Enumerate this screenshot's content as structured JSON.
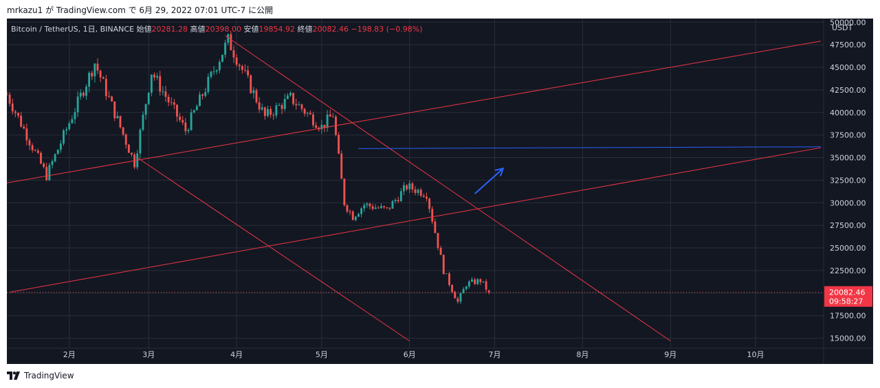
{
  "caption": {
    "user": "mrkazu1",
    "prefix": "が TradingView.com で",
    "datetime": "6月 29, 2022 07:01 UTC-7",
    "suffix": "に公開"
  },
  "legend": {
    "symbol": "Bitcoin / TetherUS, 1日, BINANCE",
    "open_label": "始値",
    "open": "20281.28",
    "high_label": "高値",
    "high": "20398.00",
    "low_label": "安値",
    "low": "19854.92",
    "close_label": "終値",
    "close": "20082.46",
    "change": "−198.83 (−0.98%)"
  },
  "footer": {
    "brand": "TradingView"
  },
  "colors": {
    "background": "#131722",
    "up": "#26a69a",
    "down": "#ef5350",
    "trendline": "#f23645",
    "level": "#2962ff",
    "grid": "#2a2e39",
    "text": "#d1d4dc"
  },
  "chart_data": {
    "type": "candlestick",
    "ylabel": "USDT",
    "y_ticks": [
      15000,
      17500,
      20000,
      22500,
      25000,
      27500,
      30000,
      32500,
      35000,
      37500,
      40000,
      42500,
      45000,
      47500,
      50000
    ],
    "y_tick_labels": [
      "15000.00",
      "17500.00",
      "20000.00",
      "22500.00",
      "25000.00",
      "27500.00",
      "30000.00",
      "32500.00",
      "35000.00",
      "37500.00",
      "40000.00",
      "42500.00",
      "45000.00",
      "47500.00",
      "50000.00"
    ],
    "ylim": [
      13900,
      50400
    ],
    "x_ticks": [
      {
        "date": "2022-02-01",
        "label": "2月"
      },
      {
        "date": "2022-03-01",
        "label": "3月"
      },
      {
        "date": "2022-04-01",
        "label": "4月"
      },
      {
        "date": "2022-05-01",
        "label": "5月"
      },
      {
        "date": "2022-06-01",
        "label": "6月"
      },
      {
        "date": "2022-07-01",
        "label": "7月"
      },
      {
        "date": "2022-08-01",
        "label": "8月"
      },
      {
        "date": "2022-09-01",
        "label": "9月"
      },
      {
        "date": "2022-10-01",
        "label": "10月"
      }
    ],
    "xlim": [
      "2022-01-10",
      "2022-10-25"
    ],
    "last_price": {
      "value": 20082.46,
      "label": "20082.46",
      "countdown": "09:58:27"
    },
    "key_points": [
      {
        "date": "2022-01-10",
        "price": 42000
      },
      {
        "date": "2022-01-24",
        "price": 33000
      },
      {
        "date": "2022-02-10",
        "price": 45500
      },
      {
        "date": "2022-02-24",
        "price": 34400
      },
      {
        "date": "2022-03-02",
        "price": 44500
      },
      {
        "date": "2022-03-14",
        "price": 38000
      },
      {
        "date": "2022-03-29",
        "price": 48000
      },
      {
        "date": "2022-04-11",
        "price": 39500
      },
      {
        "date": "2022-04-20",
        "price": 41600
      },
      {
        "date": "2022-05-01",
        "price": 38400
      },
      {
        "date": "2022-05-05",
        "price": 39800
      },
      {
        "date": "2022-05-09",
        "price": 30000
      },
      {
        "date": "2022-05-12",
        "price": 28500
      },
      {
        "date": "2022-05-16",
        "price": 29800
      },
      {
        "date": "2022-05-24",
        "price": 29200
      },
      {
        "date": "2022-05-31",
        "price": 31800
      },
      {
        "date": "2022-06-07",
        "price": 31000
      },
      {
        "date": "2022-06-13",
        "price": 22500
      },
      {
        "date": "2022-06-18",
        "price": 19000
      },
      {
        "date": "2022-06-21",
        "price": 21000
      },
      {
        "date": "2022-06-26",
        "price": 21400
      },
      {
        "date": "2022-06-29",
        "price": 20082
      }
    ],
    "trendlines": [
      {
        "name": "upper-channel",
        "start": {
          "date": "2022-01-10",
          "price": 32200
        },
        "end": {
          "date": "2022-10-24",
          "price": 47900
        },
        "color": "#f23645"
      },
      {
        "name": "lower-channel",
        "start": {
          "date": "2022-01-11",
          "price": 20100
        },
        "end": {
          "date": "2022-10-24",
          "price": 36100
        },
        "color": "#f23645"
      },
      {
        "name": "descending-resistance",
        "start": {
          "date": "2022-03-28",
          "price": 48500
        },
        "end": {
          "date": "2022-09-01",
          "price": 14700
        },
        "color": "#f23645"
      },
      {
        "name": "descending-support",
        "start": {
          "date": "2022-02-25",
          "price": 35000
        },
        "end": {
          "date": "2022-06-01",
          "price": 14700
        },
        "color": "#f23645"
      },
      {
        "name": "resistance-level",
        "start": {
          "date": "2022-05-14",
          "price": 36000
        },
        "end": {
          "date": "2022-10-24",
          "price": 36200
        },
        "color": "#2962ff"
      }
    ],
    "annotation_arrow": {
      "start": {
        "date": "2022-06-24",
        "price": 31000
      },
      "end": {
        "date": "2022-07-04",
        "price": 33800
      },
      "color": "#2962ff"
    }
  }
}
